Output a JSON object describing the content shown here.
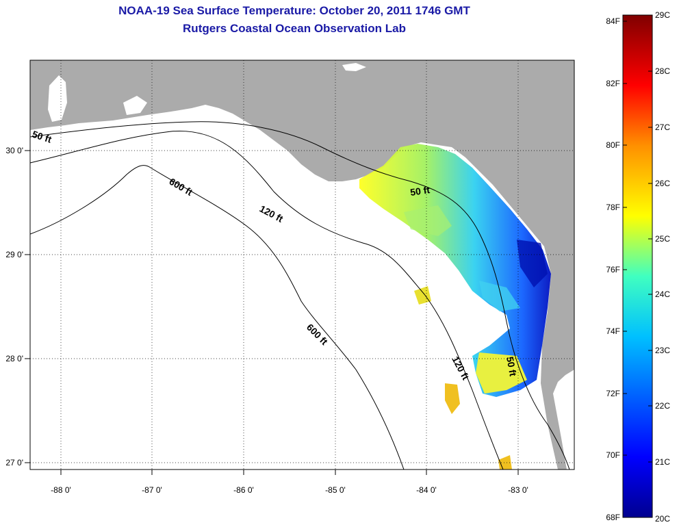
{
  "title": "NOAA-19 Sea Surface Temperature:  October 20, 2011 1746 GMT",
  "subtitle": "Rutgers Coastal Ocean Observation Lab",
  "map": {
    "x_ticks": [
      "-88 0'",
      "-87 0'",
      "-86 0'",
      "-85 0'",
      "-84 0'",
      "-83 0'"
    ],
    "y_ticks": [
      "30 0'",
      "29 0'",
      "28 0'",
      "27 0'"
    ],
    "contour_labels": {
      "c50_nw": "50 ft",
      "c600_north": "600 ft",
      "c120_north": "120 ft",
      "c50_east": "50 ft",
      "c600_south": "600 ft",
      "c120_south": "120 ft",
      "c50_south": "50 ft"
    },
    "colors": {
      "land": "#ababab",
      "water_nodata": "#ffffff",
      "contour": "#000000"
    }
  },
  "colorbar": {
    "f_labels": [
      "84F",
      "82F",
      "80F",
      "78F",
      "76F",
      "74F",
      "72F",
      "70F",
      "68F"
    ],
    "c_labels": [
      "29C",
      "28C",
      "27C",
      "26C",
      "25C",
      "24C",
      "23C",
      "22C",
      "21C",
      "20C"
    ],
    "colormap": [
      "#800000",
      "#ff0000",
      "#ff8000",
      "#ffff00",
      "#80ff80",
      "#00ffff",
      "#0080ff",
      "#0000ff",
      "#00008f"
    ]
  }
}
